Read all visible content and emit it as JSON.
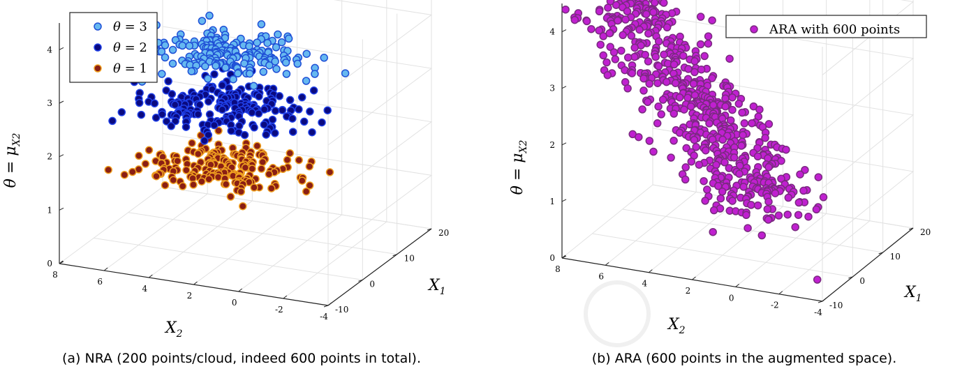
{
  "chart_data": [
    {
      "type": "scatter",
      "subtype": "scatter3d",
      "caption": "(a) NRA (200 points/cloud, indeed 600 points in total).",
      "xlabel": {
        "main": "X",
        "sub": "2"
      },
      "ylabel": {
        "main": "X",
        "sub": "1"
      },
      "zlabel": {
        "prefix": "θ = μ",
        "sub": "X2"
      },
      "x_ticks": [
        "8",
        "6",
        "4",
        "2",
        "0",
        "-2",
        "-4"
      ],
      "y_ticks": [
        "-10",
        "0",
        "10",
        "20"
      ],
      "z_ticks": [
        "0",
        "1",
        "2",
        "3",
        "4"
      ],
      "xlim": [
        -4,
        8
      ],
      "ylim": [
        -10,
        20
      ],
      "zlim": [
        0,
        4.5
      ],
      "grid": true,
      "legend_position": "top-left",
      "series": [
        {
          "name": "θ = 3",
          "name_symbol": "θ",
          "name_value": " = 3",
          "points_per_series": 200,
          "fill": "#66b8f0",
          "edge": "#1f4fd6",
          "cloud": {
            "x_center": 2.5,
            "x_sd": 1.7,
            "y_center": 2,
            "y_sd": 4,
            "z_center": 3.7,
            "z_sd": 0.12
          }
        },
        {
          "name": "θ = 2",
          "name_symbol": "θ",
          "name_value": " = 2",
          "points_per_series": 200,
          "fill": "#0a0a80",
          "edge": "#2040e8",
          "cloud": {
            "x_center": 2.5,
            "x_sd": 1.7,
            "y_center": 2,
            "y_sd": 4,
            "z_center": 2.7,
            "z_sd": 0.12
          }
        },
        {
          "name": "θ = 1",
          "name_symbol": "θ",
          "name_value": " = 1",
          "points_per_series": 200,
          "fill": "#8a1f14",
          "edge": "#f0a020",
          "cloud": {
            "x_center": 2.5,
            "x_sd": 1.7,
            "y_center": 2,
            "y_sd": 4,
            "z_center": 1.6,
            "z_sd": 0.12
          }
        }
      ]
    },
    {
      "type": "scatter",
      "subtype": "scatter3d",
      "caption": "(b) ARA (600 points in the augmented space).",
      "xlabel": {
        "main": "X",
        "sub": "2"
      },
      "ylabel": {
        "main": "X",
        "sub": "1"
      },
      "zlabel": {
        "prefix": "θ = μ",
        "sub": "X2"
      },
      "x_ticks": [
        "8",
        "6",
        "4",
        "2",
        "0",
        "-2",
        "-4"
      ],
      "y_ticks": [
        "-10",
        "0",
        "10",
        "20"
      ],
      "z_ticks": [
        "0",
        "1",
        "2",
        "3",
        "4"
      ],
      "xlim": [
        -4,
        8
      ],
      "ylim": [
        -10,
        20
      ],
      "zlim": [
        0,
        4.5
      ],
      "grid": true,
      "legend_position": "top-right",
      "series": [
        {
          "name": "ARA with 600 points",
          "points_per_series": 600,
          "fill": "#c020d0",
          "edge": "#7a2a80",
          "cloud": {
            "x_center": 2.5,
            "x_sd": 1.5,
            "y_center": 3,
            "y_sd": 3.5,
            "z_center": 2.5,
            "z_sd": 0.9
          }
        }
      ]
    }
  ]
}
